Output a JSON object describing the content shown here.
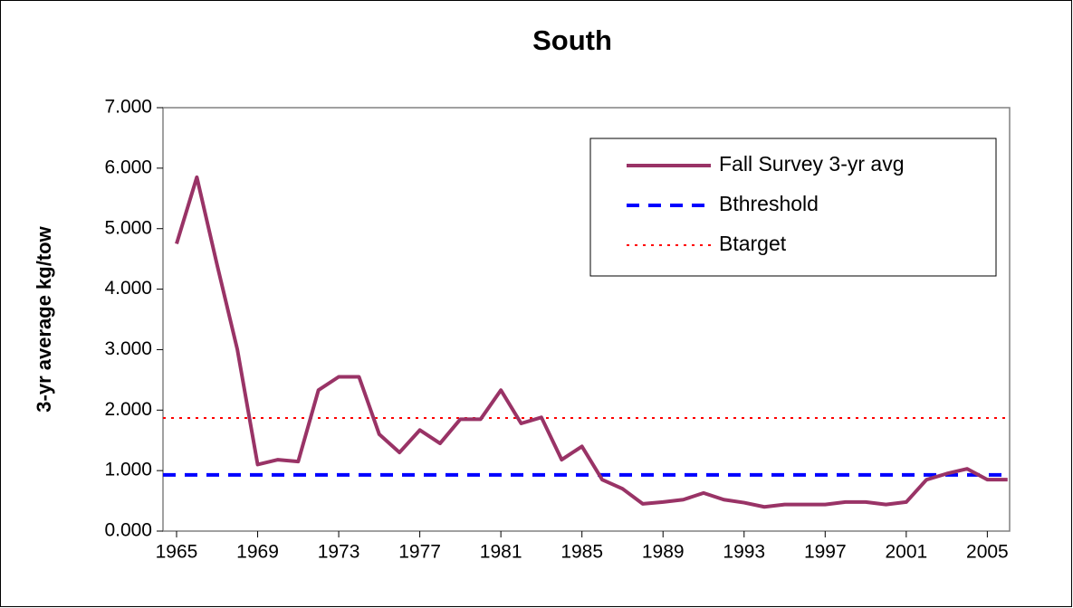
{
  "chart_data": {
    "type": "line",
    "title": "South",
    "y_label": "3-yr average kg/tow",
    "x": [
      1965,
      1966,
      1967,
      1968,
      1969,
      1970,
      1971,
      1972,
      1973,
      1974,
      1975,
      1976,
      1977,
      1978,
      1979,
      1980,
      1981,
      1982,
      1983,
      1984,
      1985,
      1986,
      1987,
      1988,
      1989,
      1990,
      1991,
      1992,
      1993,
      1994,
      1995,
      1996,
      1997,
      1998,
      1999,
      2000,
      2001,
      2002,
      2003,
      2004,
      2005,
      2006
    ],
    "series": [
      {
        "name": "Fall Survey 3-yr avg",
        "color": "#993366",
        "values": [
          4.75,
          5.85,
          4.4,
          3.0,
          1.1,
          1.18,
          1.15,
          2.33,
          2.55,
          2.55,
          1.6,
          1.3,
          1.67,
          1.45,
          1.85,
          1.85,
          2.33,
          1.78,
          1.88,
          1.18,
          1.4,
          0.85,
          0.7,
          0.45,
          0.48,
          0.52,
          0.63,
          0.52,
          0.47,
          0.4,
          0.44,
          0.44,
          0.44,
          0.48,
          0.48,
          0.44,
          0.48,
          0.85,
          0.95,
          1.03,
          0.85,
          0.85
        ]
      }
    ],
    "reference_lines": [
      {
        "name": "Bthreshold",
        "value": 0.93,
        "color": "#0000ff",
        "style": "dashed"
      },
      {
        "name": "Btarget",
        "value": 1.87,
        "color": "#ff0000",
        "style": "dotted"
      }
    ],
    "xlim": [
      1964.33,
      2006.1
    ],
    "xticks": [
      1965,
      1969,
      1973,
      1977,
      1981,
      1985,
      1989,
      1993,
      1997,
      2001,
      2005
    ],
    "ylim": [
      0,
      7
    ],
    "yticks": [
      {
        "value": 0,
        "label": "0.000"
      },
      {
        "value": 1,
        "label": "1.000"
      },
      {
        "value": 2,
        "label": "2.000"
      },
      {
        "value": 3,
        "label": "3.000"
      },
      {
        "value": 4,
        "label": "4.000"
      },
      {
        "value": 5,
        "label": "5.000"
      },
      {
        "value": 6,
        "label": "6.000"
      },
      {
        "value": 7,
        "label": "7.000"
      }
    ],
    "grid": false
  }
}
